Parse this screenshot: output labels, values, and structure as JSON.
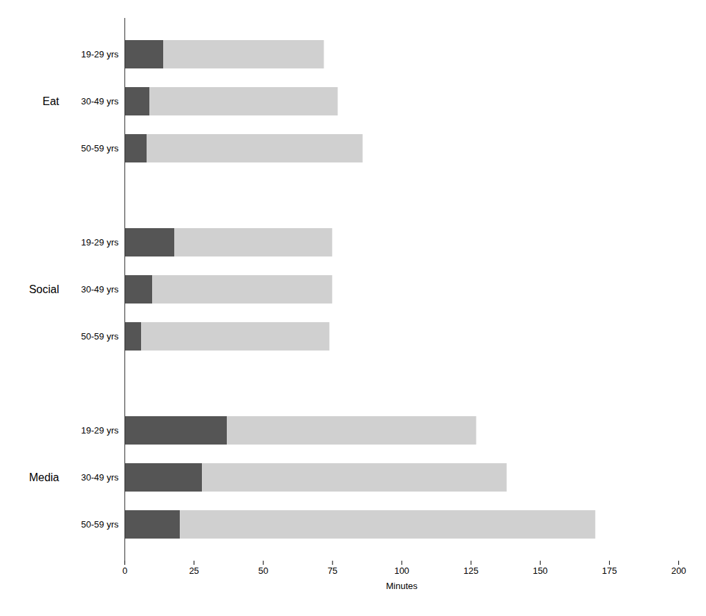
{
  "chart_data": {
    "type": "bar",
    "orientation": "horizontal",
    "stacked": true,
    "xlabel": "Minutes",
    "categories": [
      "19-29 yrs",
      "30-49 yrs",
      "50-59 yrs"
    ],
    "groups": [
      "Eat",
      "Social",
      "Media"
    ],
    "series": [
      {
        "color": "#555555",
        "values": [
          [
            14,
            9,
            8
          ],
          [
            18,
            10,
            6
          ],
          [
            37,
            28,
            20
          ]
        ]
      },
      {
        "color": "#d0d0d0",
        "values": [
          [
            58,
            68,
            78
          ],
          [
            57,
            65,
            68
          ],
          [
            90,
            110,
            150
          ]
        ]
      }
    ],
    "xlim": [
      0,
      200
    ],
    "xticks": [
      0,
      25,
      50,
      75,
      100,
      125,
      150,
      175,
      200
    ]
  }
}
